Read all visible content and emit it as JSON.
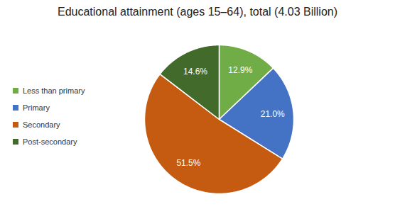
{
  "chart_data": {
    "type": "pie",
    "title": "Educational attainment (ages 15–64), total (4.03 Billion)",
    "categories": [
      "Less than primary",
      "Primary",
      "Secondary",
      "Post-secondary"
    ],
    "values": [
      12.9,
      21.0,
      51.5,
      14.6
    ],
    "value_labels": [
      "12.9%",
      "21.0%",
      "51.5%",
      "14.6%"
    ],
    "colors": [
      "#70ad47",
      "#4472c4",
      "#c55a11",
      "#426a2b"
    ],
    "data_labels": true,
    "legend": "left"
  }
}
